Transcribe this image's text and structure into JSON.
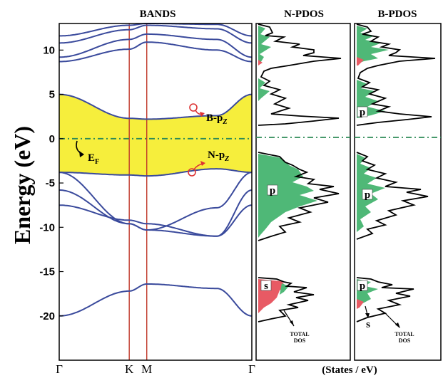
{
  "chart_data": [
    {
      "type": "line",
      "title": "BANDS",
      "ylabel": "Energy (eV)",
      "ylim": [
        -25,
        13
      ],
      "k_points": [
        "Γ",
        "K",
        "M",
        "Γ"
      ],
      "y_ticks": [
        10,
        5,
        0,
        -5,
        -10,
        -15,
        -20
      ],
      "fermi_level": 0,
      "gap_fill_color": "#f6ee3c",
      "band_color": "#3a4a9c",
      "vertical_line_color": "#c0392b",
      "fermi_line_color": "#2e8b57",
      "annotations": {
        "fermi": "E",
        "fermi_sub": "F",
        "cb": "B-p",
        "cb_sub": "Z",
        "vb": "N-p",
        "vb_sub": "Z"
      },
      "series": [
        {
          "x": [
            0,
            0.8,
            1,
            1.8,
            2.2
          ],
          "y": [
            -20,
            -17.2,
            -16.4,
            -16.9,
            -20
          ]
        },
        {
          "x": [
            0,
            0.8,
            1,
            1.8,
            2.2
          ],
          "y": [
            -7.5,
            -9.2,
            -9.6,
            -11,
            -7.5
          ]
        },
        {
          "x": [
            0,
            0.8,
            1,
            1.8,
            2.2
          ],
          "y": [
            -5.8,
            -9.6,
            -10.3,
            -11,
            -5.8
          ]
        },
        {
          "x": [
            0,
            0.8,
            1,
            1.8,
            2.2
          ],
          "y": [
            -3.8,
            -9.6,
            -10.3,
            -7.8,
            -3.8
          ]
        },
        {
          "x": [
            0,
            0.8,
            1,
            1.8,
            2.2
          ],
          "y": [
            -3.8,
            -4.1,
            -4.2,
            -3.4,
            -3.8
          ]
        },
        {
          "x": [
            0,
            0.8,
            1,
            1.8,
            2.2
          ],
          "y": [
            5,
            2.3,
            2.2,
            2.6,
            5
          ]
        },
        {
          "x": [
            0,
            0.8,
            1,
            1.8,
            2.2
          ],
          "y": [
            8.7,
            10.1,
            10.9,
            10.0,
            8.7
          ]
        },
        {
          "x": [
            0,
            0.8,
            1,
            1.8,
            2.2
          ],
          "y": [
            9.2,
            11.2,
            11.8,
            11.2,
            9.2
          ]
        },
        {
          "x": [
            0,
            0.8,
            1,
            1.8,
            2.2
          ],
          "y": [
            10.8,
            12.3,
            12.8,
            12.4,
            10.8
          ]
        },
        {
          "x": [
            0,
            0.8,
            1,
            1.8,
            2.2
          ],
          "y": [
            11.6,
            12.8,
            13,
            12.9,
            11.6
          ]
        }
      ]
    },
    {
      "type": "area",
      "title": "N-PDOS",
      "labels": {
        "p": "p",
        "s": "s",
        "total": "TOTAL",
        "total2": "DOS"
      },
      "xlabel": "(States / eV)",
      "colors": {
        "p": "#4fb877",
        "s": "#e85a64",
        "total": "#000000"
      }
    },
    {
      "type": "area",
      "title": "B-PDOS",
      "labels": {
        "p1": "p",
        "p2": "p",
        "p3": "p",
        "s": "s",
        "total": "TOTAL",
        "total2": "DOS"
      },
      "colors": {
        "p": "#4fb877",
        "s": "#e85a64",
        "total": "#000000"
      }
    }
  ]
}
